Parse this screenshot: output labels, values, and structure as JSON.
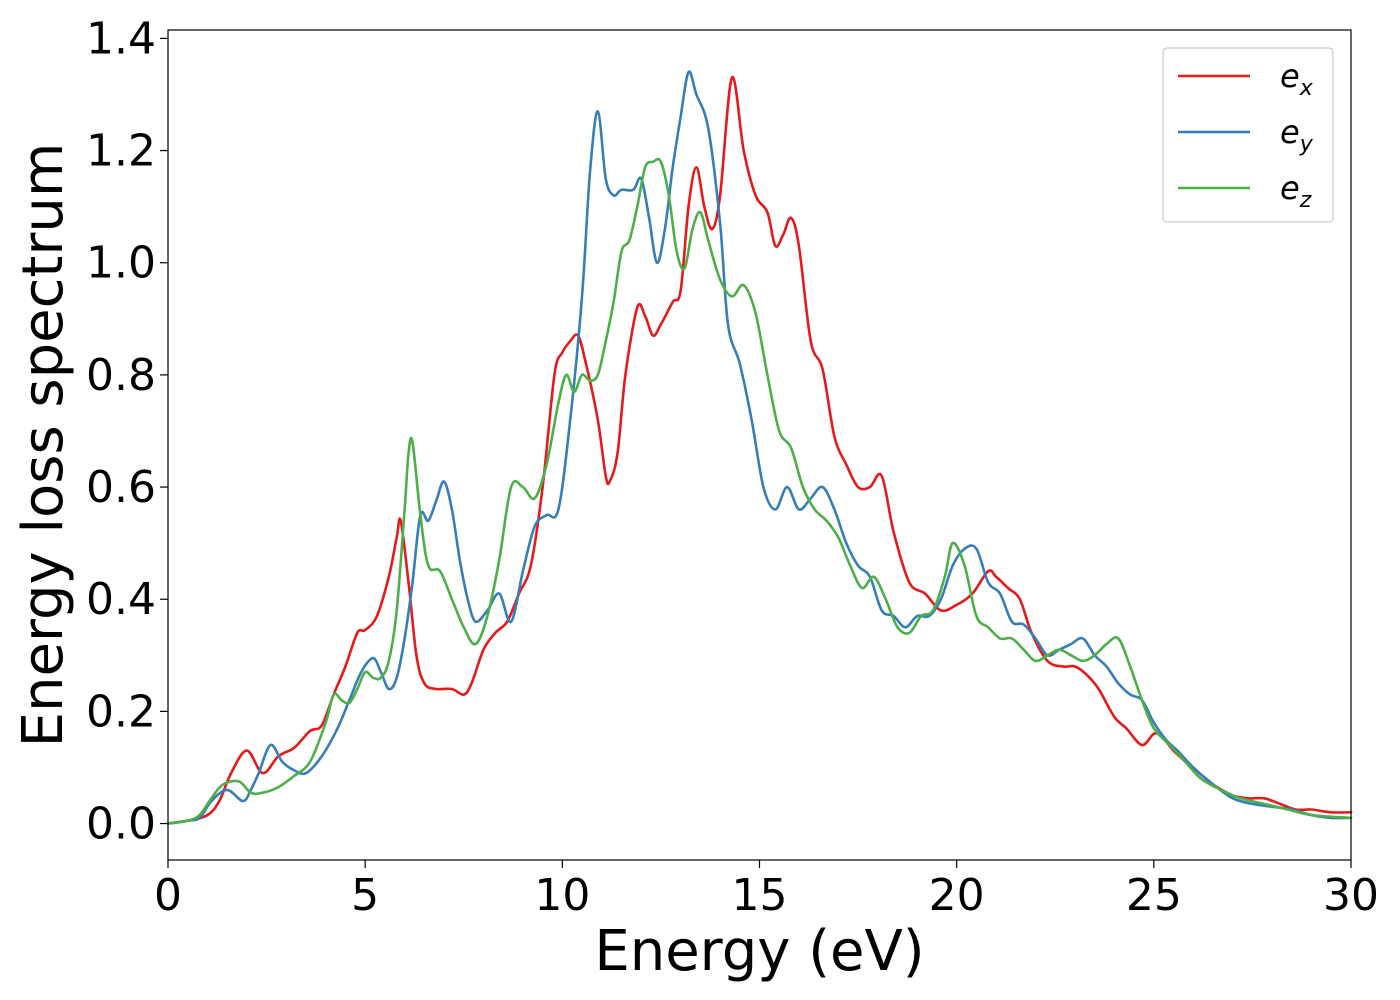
{
  "chart_data": {
    "type": "line",
    "title": "",
    "xlabel": "Energy (eV)",
    "ylabel": "Energy loss spectrum",
    "xlim": [
      0,
      30
    ],
    "ylim": [
      -0.065,
      1.415
    ],
    "xticks": [
      0,
      5,
      10,
      15,
      20,
      25,
      30
    ],
    "xtick_labels": [
      "0",
      "5",
      "10",
      "15",
      "20",
      "25",
      "30"
    ],
    "yticks": [
      0.0,
      0.2,
      0.4,
      0.6,
      0.8,
      1.0,
      1.2,
      1.4
    ],
    "ytick_labels": [
      "0.0",
      "0.2",
      "0.4",
      "0.6",
      "0.8",
      "1.0",
      "1.2",
      "1.4"
    ],
    "grid": false,
    "legend": "top-right",
    "series": [
      {
        "name": "e",
        "sub": "x",
        "color": "#e41a1c",
        "x": [
          0,
          0.5,
          1.0,
          1.3,
          1.6,
          2.0,
          2.4,
          2.8,
          3.2,
          3.6,
          3.9,
          4.2,
          4.5,
          4.8,
          5.0,
          5.3,
          5.6,
          5.8,
          5.9,
          6.1,
          6.3,
          6.5,
          6.8,
          7.2,
          7.5,
          7.7,
          8.0,
          8.3,
          8.6,
          8.9,
          9.2,
          9.5,
          9.8,
          10.0,
          10.2,
          10.4,
          10.6,
          10.9,
          11.1,
          11.2,
          11.4,
          11.6,
          11.9,
          12.1,
          12.3,
          12.5,
          12.8,
          13.0,
          13.2,
          13.4,
          13.6,
          13.8,
          14.0,
          14.3,
          14.6,
          14.9,
          15.2,
          15.4,
          15.6,
          15.8,
          16.0,
          16.3,
          16.6,
          16.9,
          17.2,
          17.5,
          17.8,
          18.1,
          18.4,
          18.8,
          19.2,
          19.6,
          20.0,
          20.4,
          20.8,
          21.0,
          21.3,
          21.6,
          21.9,
          22.3,
          22.7,
          23.0,
          23.3,
          23.6,
          24.0,
          24.3,
          24.7,
          25.0,
          25.2,
          25.5,
          25.8,
          26.2,
          26.6,
          27.0,
          27.4,
          27.8,
          28.2,
          28.6,
          29.0,
          29.5,
          30.0
        ],
        "y": [
          0.0,
          0.005,
          0.015,
          0.04,
          0.09,
          0.13,
          0.09,
          0.12,
          0.135,
          0.165,
          0.175,
          0.23,
          0.28,
          0.34,
          0.345,
          0.37,
          0.44,
          0.51,
          0.54,
          0.43,
          0.3,
          0.25,
          0.24,
          0.24,
          0.23,
          0.25,
          0.31,
          0.34,
          0.36,
          0.41,
          0.46,
          0.6,
          0.8,
          0.84,
          0.86,
          0.87,
          0.82,
          0.72,
          0.62,
          0.61,
          0.66,
          0.8,
          0.92,
          0.905,
          0.87,
          0.89,
          0.93,
          0.95,
          1.1,
          1.17,
          1.1,
          1.06,
          1.12,
          1.33,
          1.2,
          1.12,
          1.09,
          1.03,
          1.05,
          1.08,
          1.03,
          0.86,
          0.81,
          0.69,
          0.64,
          0.6,
          0.6,
          0.62,
          0.52,
          0.43,
          0.41,
          0.38,
          0.39,
          0.41,
          0.45,
          0.44,
          0.42,
          0.4,
          0.34,
          0.29,
          0.28,
          0.28,
          0.265,
          0.24,
          0.19,
          0.17,
          0.14,
          0.16,
          0.155,
          0.13,
          0.11,
          0.08,
          0.065,
          0.05,
          0.045,
          0.045,
          0.035,
          0.025,
          0.025,
          0.02,
          0.02
        ]
      },
      {
        "name": "e",
        "sub": "y",
        "color": "#377eb8",
        "x": [
          0,
          0.5,
          0.8,
          1.1,
          1.5,
          1.9,
          2.1,
          2.3,
          2.6,
          2.9,
          3.2,
          3.5,
          3.9,
          4.3,
          4.6,
          4.9,
          5.2,
          5.4,
          5.6,
          5.8,
          6.0,
          6.2,
          6.4,
          6.6,
          6.8,
          7.0,
          7.2,
          7.4,
          7.6,
          7.8,
          8.1,
          8.4,
          8.7,
          9.0,
          9.3,
          9.6,
          9.9,
          10.2,
          10.5,
          10.7,
          10.9,
          11.1,
          11.3,
          11.5,
          11.8,
          12.0,
          12.2,
          12.4,
          12.6,
          12.8,
          13.0,
          13.2,
          13.4,
          13.7,
          14.0,
          14.2,
          14.5,
          14.8,
          15.1,
          15.4,
          15.7,
          16.0,
          16.3,
          16.6,
          16.9,
          17.2,
          17.5,
          17.8,
          18.1,
          18.4,
          18.7,
          19.0,
          19.3,
          19.6,
          19.9,
          20.2,
          20.5,
          20.8,
          21.1,
          21.4,
          21.7,
          22.0,
          22.3,
          22.6,
          22.9,
          23.2,
          23.5,
          23.8,
          24.1,
          24.4,
          24.7,
          25.0,
          25.3,
          25.6,
          26.0,
          26.5,
          27.0,
          27.5,
          28.0,
          28.5,
          29.0,
          29.5,
          30.0
        ],
        "y": [
          0.0,
          0.005,
          0.01,
          0.04,
          0.06,
          0.04,
          0.06,
          0.09,
          0.14,
          0.11,
          0.095,
          0.09,
          0.12,
          0.17,
          0.22,
          0.27,
          0.295,
          0.27,
          0.24,
          0.26,
          0.33,
          0.43,
          0.55,
          0.54,
          0.575,
          0.61,
          0.56,
          0.47,
          0.4,
          0.36,
          0.38,
          0.41,
          0.36,
          0.45,
          0.53,
          0.55,
          0.56,
          0.72,
          0.94,
          1.16,
          1.27,
          1.15,
          1.12,
          1.13,
          1.13,
          1.15,
          1.08,
          1.0,
          1.06,
          1.17,
          1.26,
          1.34,
          1.3,
          1.24,
          1.07,
          0.89,
          0.82,
          0.72,
          0.6,
          0.56,
          0.6,
          0.56,
          0.58,
          0.6,
          0.56,
          0.5,
          0.46,
          0.44,
          0.38,
          0.37,
          0.35,
          0.37,
          0.37,
          0.4,
          0.46,
          0.49,
          0.49,
          0.43,
          0.41,
          0.36,
          0.355,
          0.33,
          0.3,
          0.31,
          0.32,
          0.33,
          0.3,
          0.28,
          0.25,
          0.23,
          0.22,
          0.18,
          0.15,
          0.13,
          0.1,
          0.07,
          0.045,
          0.035,
          0.03,
          0.025,
          0.015,
          0.01,
          0.01
        ]
      },
      {
        "name": "e",
        "sub": "z",
        "color": "#4daf4a",
        "x": [
          0,
          0.5,
          0.8,
          1.1,
          1.4,
          1.8,
          2.1,
          2.4,
          2.8,
          3.2,
          3.6,
          4.0,
          4.2,
          4.4,
          4.6,
          4.8,
          5.0,
          5.2,
          5.4,
          5.6,
          5.8,
          6.0,
          6.1,
          6.2,
          6.4,
          6.6,
          6.9,
          7.2,
          7.5,
          7.8,
          8.1,
          8.4,
          8.7,
          9.0,
          9.3,
          9.6,
          9.9,
          10.1,
          10.3,
          10.5,
          10.7,
          10.9,
          11.1,
          11.3,
          11.5,
          11.7,
          11.9,
          12.1,
          12.3,
          12.5,
          12.7,
          12.9,
          13.1,
          13.3,
          13.5,
          13.7,
          14.0,
          14.3,
          14.6,
          14.9,
          15.2,
          15.5,
          15.8,
          16.1,
          16.4,
          16.7,
          17.0,
          17.3,
          17.6,
          17.9,
          18.2,
          18.5,
          18.8,
          19.1,
          19.4,
          19.7,
          19.9,
          20.2,
          20.5,
          20.8,
          21.1,
          21.4,
          21.7,
          22.0,
          22.3,
          22.6,
          22.9,
          23.2,
          23.5,
          23.8,
          24.1,
          24.4,
          24.7,
          25.0,
          25.4,
          25.8,
          26.2,
          26.7,
          27.2,
          27.8,
          28.4,
          29.0,
          30.0
        ],
        "y": [
          0.0,
          0.005,
          0.015,
          0.045,
          0.07,
          0.075,
          0.055,
          0.055,
          0.065,
          0.085,
          0.11,
          0.18,
          0.23,
          0.22,
          0.215,
          0.24,
          0.27,
          0.26,
          0.26,
          0.29,
          0.38,
          0.56,
          0.66,
          0.68,
          0.55,
          0.46,
          0.45,
          0.4,
          0.35,
          0.32,
          0.37,
          0.47,
          0.6,
          0.6,
          0.58,
          0.64,
          0.75,
          0.8,
          0.77,
          0.8,
          0.79,
          0.8,
          0.86,
          0.93,
          1.02,
          1.04,
          1.1,
          1.17,
          1.18,
          1.18,
          1.12,
          1.02,
          0.99,
          1.06,
          1.09,
          1.04,
          0.97,
          0.94,
          0.96,
          0.91,
          0.8,
          0.7,
          0.67,
          0.6,
          0.56,
          0.54,
          0.51,
          0.46,
          0.42,
          0.44,
          0.4,
          0.35,
          0.34,
          0.37,
          0.38,
          0.44,
          0.5,
          0.46,
          0.37,
          0.35,
          0.33,
          0.33,
          0.31,
          0.29,
          0.3,
          0.31,
          0.3,
          0.29,
          0.3,
          0.32,
          0.33,
          0.28,
          0.22,
          0.17,
          0.14,
          0.11,
          0.08,
          0.06,
          0.045,
          0.035,
          0.025,
          0.015,
          0.01
        ]
      }
    ]
  }
}
